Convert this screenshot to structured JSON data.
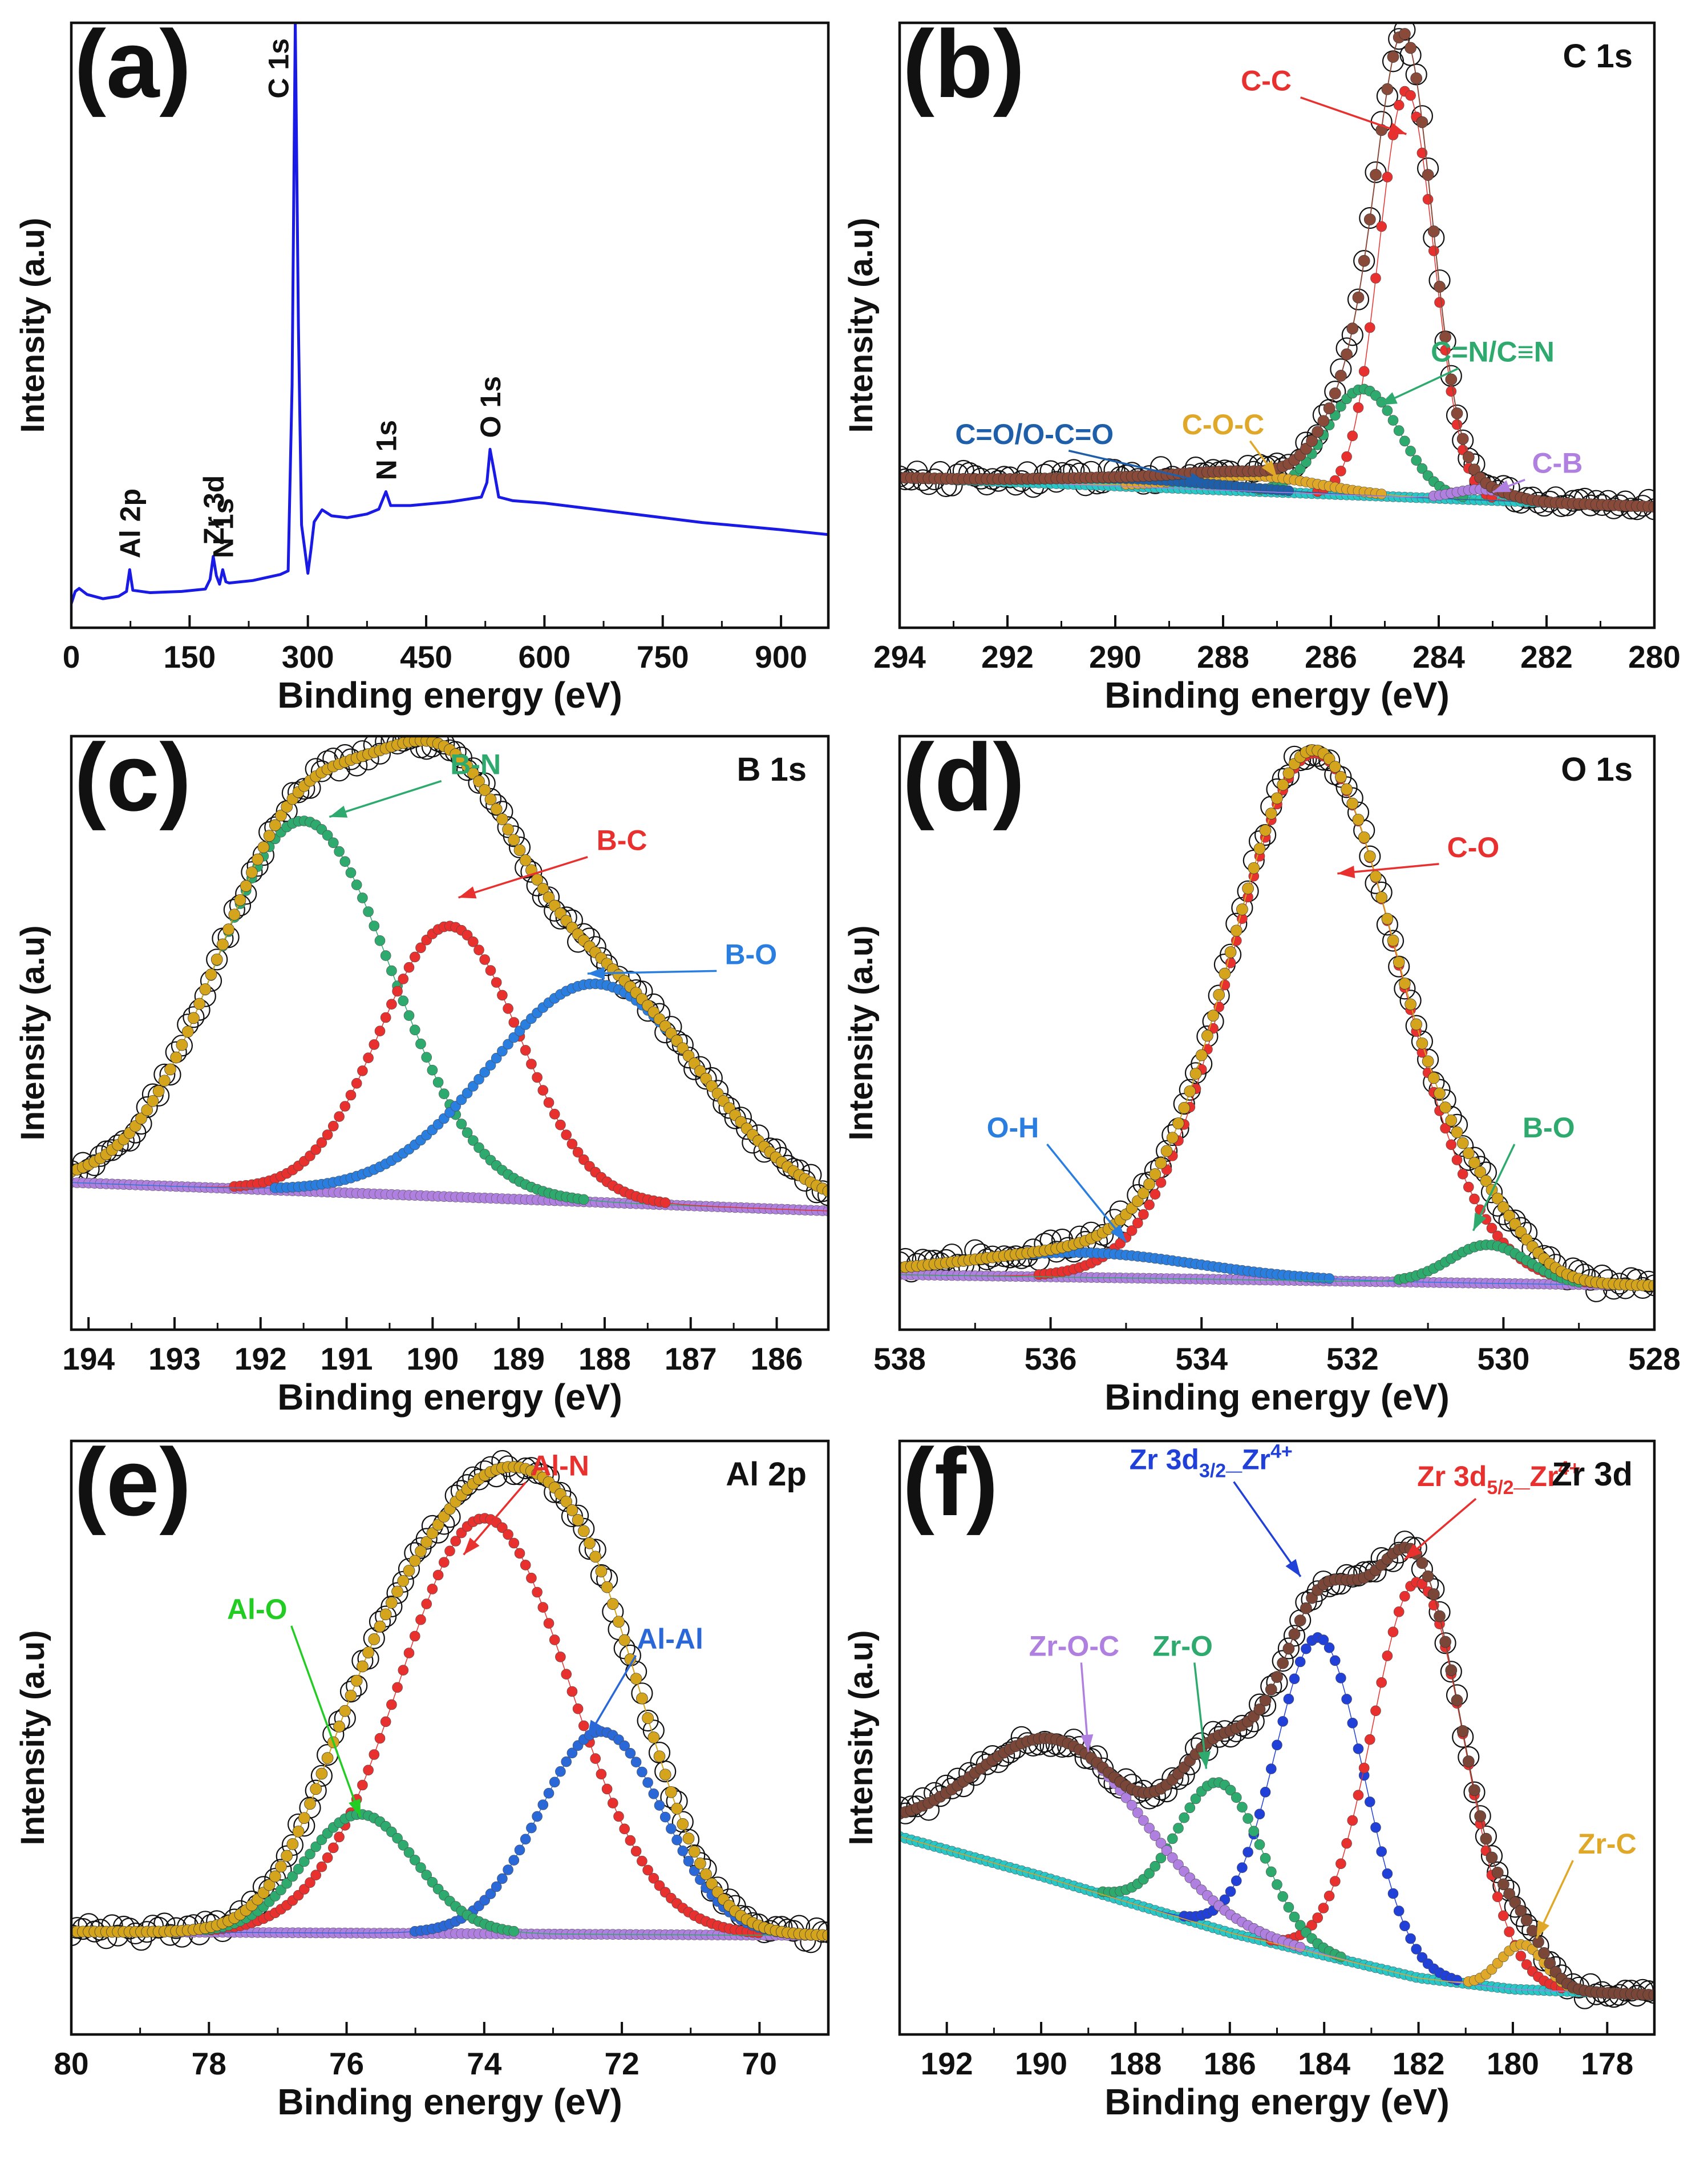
{
  "figure": {
    "panels": [
      {
        "id": "a",
        "letter": "(a)",
        "title": "",
        "kind": "survey",
        "xlabel": "Binding energy (eV)",
        "ylabel": "Intensity (a.u)",
        "xlim": [
          0,
          960
        ],
        "ylim": [
          0,
          100
        ],
        "ticks": [
          0,
          150,
          300,
          450,
          600,
          750,
          900
        ],
        "tick_labels": [
          "0",
          "150",
          "300",
          "450",
          "600",
          "750",
          "900"
        ],
        "series": [
          {
            "name": "Survey spectrum",
            "color": "#1a1ae6"
          }
        ],
        "spectrum": [
          [
            0,
            4
          ],
          [
            5,
            6
          ],
          [
            10,
            6.5
          ],
          [
            20,
            5.5
          ],
          [
            40,
            4.8
          ],
          [
            60,
            5.2
          ],
          [
            70,
            6.0
          ],
          [
            74,
            9.6
          ],
          [
            78,
            6.2
          ],
          [
            100,
            5.8
          ],
          [
            140,
            6.0
          ],
          [
            170,
            6.4
          ],
          [
            176,
            8.0
          ],
          [
            180,
            11.8
          ],
          [
            184,
            8.6
          ],
          [
            188,
            7.2
          ],
          [
            192,
            9.6
          ],
          [
            196,
            7.6
          ],
          [
            200,
            7.4
          ],
          [
            230,
            7.8
          ],
          [
            265,
            8.8
          ],
          [
            275,
            9.4
          ],
          [
            280,
            40
          ],
          [
            284,
            100
          ],
          [
            288,
            50
          ],
          [
            292,
            17
          ],
          [
            296,
            13
          ],
          [
            300,
            9.0
          ],
          [
            304,
            13
          ],
          [
            308,
            17.5
          ],
          [
            318,
            19.5
          ],
          [
            330,
            18.5
          ],
          [
            350,
            18.2
          ],
          [
            375,
            18.8
          ],
          [
            390,
            19.6
          ],
          [
            399,
            22.5
          ],
          [
            405,
            20.2
          ],
          [
            430,
            20.2
          ],
          [
            480,
            20.8
          ],
          [
            520,
            21.6
          ],
          [
            527,
            24
          ],
          [
            531,
            29.5
          ],
          [
            536,
            26
          ],
          [
            542,
            21.6
          ],
          [
            560,
            21.0
          ],
          [
            600,
            20.6
          ],
          [
            650,
            19.8
          ],
          [
            700,
            19.0
          ],
          [
            750,
            18.2
          ],
          [
            800,
            17.4
          ],
          [
            850,
            16.8
          ],
          [
            900,
            16.2
          ],
          [
            960,
            15.4
          ]
        ],
        "annotations": [
          {
            "text": "Al 2p",
            "x": 74,
            "y": 9.6
          },
          {
            "text": "Zr 3d",
            "x": 180,
            "y": 11.8
          },
          {
            "text": "N 1s",
            "x": 192,
            "y": 9.6
          },
          {
            "text": "C 1s",
            "x": 284,
            "y": 100
          },
          {
            "text": "N 1s",
            "x": 399,
            "y": 22.5
          },
          {
            "text": "O 1s",
            "x": 531,
            "y": 29.5
          }
        ]
      },
      {
        "id": "b",
        "letter": "(b)",
        "title": "C 1s",
        "kind": "fit",
        "xlabel": "Binding energy (eV)",
        "ylabel": "Intensity (a.u)",
        "xlim": [
          294,
          280
        ],
        "ylim": [
          -25,
          100
        ],
        "ticks": [
          294,
          292,
          290,
          288,
          286,
          284,
          282,
          280
        ],
        "tick_labels": [
          "294",
          "292",
          "290",
          "288",
          "286",
          "284",
          "282",
          "280"
        ],
        "baseline": {
          "color": "#28c8c8",
          "values": [
            [
              294,
              6
            ],
            [
              280,
              0
            ]
          ]
        },
        "experimental_color": "#111111",
        "envelope": {
          "color": "#8a4a3a"
        },
        "components": [
          {
            "name": "C-C",
            "color": "#e8302e",
            "center": 284.6,
            "height": 84,
            "fwhm": 1.2
          },
          {
            "name": "C=N/C≡N",
            "color": "#2eaa6e",
            "center": 285.4,
            "height": 22,
            "fwhm": 1.6
          },
          {
            "name": "C-O-C",
            "color": "#e0a828",
            "center": 287.4,
            "height": 3.2,
            "fwhm": 2.8
          },
          {
            "name": "C=O/O-C=O",
            "color": "#1f5faa",
            "center": 289.6,
            "height": 1.6,
            "fwhm": 4.0
          },
          {
            "name": "C-B",
            "color": "#b080e0",
            "center": 283.2,
            "height": 2.2,
            "fwhm": 1.2
          }
        ],
        "labels": [
          {
            "text": "C-C",
            "color": "#e8302e",
            "tx": 287.2,
            "ty": 86,
            "ax": 284.6,
            "ay": 77
          },
          {
            "text": "C=N/C≡N",
            "color": "#2eaa6e",
            "tx": 283.0,
            "ty": 30,
            "ax": 285.1,
            "ay": 21
          },
          {
            "text": "C-O-C",
            "color": "#e0a828",
            "tx": 288.0,
            "ty": 15,
            "ax": 287.0,
            "ay": 6
          },
          {
            "text": "C=O/O-C=O",
            "color": "#1f5faa",
            "tx": 291.5,
            "ty": 13,
            "ax": 288.3,
            "ay": 5
          },
          {
            "text": "C-B",
            "color": "#b080e0",
            "tx": 281.8,
            "ty": 7,
            "ax": 283.0,
            "ay": 3
          }
        ]
      },
      {
        "id": "c",
        "letter": "(c)",
        "title": "B 1s",
        "kind": "fit",
        "xlabel": "Binding energy (eV)",
        "ylabel": "Intensity (a.u)",
        "xlim": [
          194.2,
          185.4
        ],
        "ylim": [
          -25,
          100
        ],
        "ticks": [
          194,
          193,
          192,
          191,
          190,
          189,
          188,
          187,
          186
        ],
        "tick_labels": [
          "194",
          "193",
          "192",
          "191",
          "190",
          "189",
          "188",
          "187",
          "186"
        ],
        "baseline": {
          "color": "#b080e0",
          "values": [
            [
              194.2,
              6
            ],
            [
              185.4,
              0
            ]
          ]
        },
        "experimental_color": "#111111",
        "envelope": {
          "color": "#d4a41c"
        },
        "components": [
          {
            "name": "B-N",
            "color": "#2eaa6e",
            "center": 191.5,
            "height": 78,
            "fwhm": 2.4
          },
          {
            "name": "B-C",
            "color": "#e8302e",
            "center": 189.8,
            "height": 57,
            "fwhm": 1.9
          },
          {
            "name": "B-O",
            "color": "#2a7ee0",
            "center": 188.1,
            "height": 46,
            "fwhm": 2.9
          }
        ],
        "labels": [
          {
            "text": "B-N",
            "color": "#2eaa6e",
            "tx": 189.5,
            "ty": 92,
            "ax": 191.2,
            "ay": 83
          },
          {
            "text": "B-C",
            "color": "#e8302e",
            "tx": 187.8,
            "ty": 76,
            "ax": 189.7,
            "ay": 66
          },
          {
            "text": "B-O",
            "color": "#2a7ee0",
            "tx": 186.3,
            "ty": 52,
            "ax": 188.2,
            "ay": 50
          }
        ]
      },
      {
        "id": "d",
        "letter": "(d)",
        "title": "O 1s",
        "kind": "fit",
        "xlabel": "Binding energy (eV)",
        "ylabel": "Intensity (a.u)",
        "xlim": [
          538,
          528
        ],
        "ylim": [
          -8,
          100
        ],
        "ticks": [
          538,
          536,
          534,
          532,
          530,
          528
        ],
        "tick_labels": [
          "538",
          "536",
          "534",
          "532",
          "530",
          "528"
        ],
        "baseline": {
          "color": "#b080e0",
          "values": [
            [
              538,
              2
            ],
            [
              528,
              0
            ]
          ]
        },
        "experimental_color": "#111111",
        "envelope": {
          "color": "#d4a41c"
        },
        "components": [
          {
            "name": "C-O",
            "color": "#e8302e",
            "center": 532.5,
            "height": 96,
            "fwhm": 2.6
          },
          {
            "name": "O-H",
            "color": "#2a7ee0",
            "center": 535.6,
            "height": 4.5,
            "fwhm": 3.6
          },
          {
            "name": "B-O",
            "color": "#2eaa6e",
            "center": 530.2,
            "height": 7,
            "fwhm": 1.2
          }
        ],
        "labels": [
          {
            "text": "C-O",
            "color": "#e8302e",
            "tx": 530.4,
            "ty": 78,
            "ax": 532.2,
            "ay": 75
          },
          {
            "text": "O-H",
            "color": "#2a7ee0",
            "tx": 536.5,
            "ty": 27,
            "ax": 535.0,
            "ay": 8
          },
          {
            "text": "B-O",
            "color": "#2eaa6e",
            "tx": 529.4,
            "ty": 27,
            "ax": 530.4,
            "ay": 10
          }
        ]
      },
      {
        "id": "e",
        "letter": "(e)",
        "title": "Al 2p",
        "kind": "fit",
        "xlabel": "Binding energy (eV)",
        "ylabel": "Intensity (a.u)",
        "xlim": [
          80,
          69
        ],
        "ylim": [
          -20,
          100
        ],
        "ticks": [
          80,
          78,
          76,
          74,
          72,
          70
        ],
        "tick_labels": [
          "80",
          "78",
          "76",
          "74",
          "72",
          "70"
        ],
        "baseline": {
          "color": "#b080e0",
          "values": [
            [
              80,
              0.8
            ],
            [
              69,
              0
            ]
          ]
        },
        "experimental_color": "#111111",
        "envelope": {
          "color": "#d4a41c"
        },
        "components": [
          {
            "name": "Al-N",
            "color": "#e8302e",
            "center": 74.0,
            "height": 84,
            "fwhm": 2.9
          },
          {
            "name": "Al-Al",
            "color": "#2a68d8",
            "center": 72.3,
            "height": 41,
            "fwhm": 2.1
          },
          {
            "name": "Al-O",
            "color": "#2eaa6e",
            "center": 75.8,
            "height": 24,
            "fwhm": 1.9
          }
        ],
        "labels": [
          {
            "text": "Al-N",
            "color": "#e8302e",
            "tx": 72.9,
            "ty": 93,
            "ax": 74.3,
            "ay": 77
          },
          {
            "text": "Al-Al",
            "color": "#2a68d8",
            "tx": 71.3,
            "ty": 58,
            "ax": 72.5,
            "ay": 40
          },
          {
            "text": "Al-O",
            "color": "#22cc22",
            "tx": 77.3,
            "ty": 64,
            "ax": 75.8,
            "ay": 24
          }
        ]
      },
      {
        "id": "f",
        "letter": "(f)",
        "title": "Zr 3d",
        "kind": "fit",
        "xlabel": "Binding energy (eV)",
        "ylabel": "Intensity (a.u)",
        "xlim": [
          193,
          177
        ],
        "ylim": [
          -5,
          100
        ],
        "ticks": [
          192,
          190,
          188,
          186,
          184,
          182,
          180,
          178
        ],
        "tick_labels": [
          "192",
          "190",
          "188",
          "186",
          "184",
          "182",
          "180",
          "178"
        ],
        "baseline": {
          "color": "#28c8c8",
          "values": [
            [
              193,
              30
            ],
            [
              190,
              23
            ],
            [
              186,
              13
            ],
            [
              182,
              5
            ],
            [
              180,
              3
            ],
            [
              177,
              2
            ]
          ]
        },
        "experimental_color": "#111111",
        "envelope": {
          "color": "#7a4638"
        },
        "components": [
          {
            "name": "Zr 3d3/2_Zr4+",
            "color": "#2040d8",
            "center": 184.1,
            "height": 56,
            "fwhm": 2.2
          },
          {
            "name": "Zr 3d5/2_Zr4+",
            "color": "#e8302e",
            "center": 182.0,
            "height": 70,
            "fwhm": 2.3
          },
          {
            "name": "Zr-O",
            "color": "#2eaa6e",
            "center": 186.2,
            "height": 26,
            "fwhm": 2.1
          },
          {
            "name": "Zr-O-C",
            "color": "#b080e0",
            "center": 189.6,
            "height": 25,
            "fwhm": 4.2
          },
          {
            "name": "Zr-C",
            "color": "#e0a828",
            "center": 179.8,
            "height": 8,
            "fwhm": 1.1
          }
        ],
        "labels": [
          {
            "text": "Zr-O-C",
            "color": "#b080e0",
            "tx": 189.3,
            "ty": 62,
            "ax": 189.0,
            "ay": 45
          },
          {
            "text": "Zr-O",
            "color": "#2eaa6e",
            "tx": 187.0,
            "ty": 62,
            "ax": 186.5,
            "ay": 42
          },
          {
            "text": "Zr-C",
            "color": "#e0a828",
            "tx": 178.0,
            "ty": 27,
            "ax": 179.5,
            "ay": 12
          }
        ],
        "zr_labels": [
          {
            "main": "Zr 3d",
            "sub": "3/2",
            "mid": "_Zr",
            "sup": "4+",
            "color": "#2040d8",
            "tx": 186.4,
            "ty": 95,
            "ax": 184.5,
            "ay": 76
          },
          {
            "main": "Zr 3d",
            "sub": "5/2",
            "mid": "_Zr",
            "sup": "4+",
            "color": "#e8302e",
            "tx": 180.3,
            "ty": 92,
            "ax": 182.3,
            "ay": 79
          }
        ]
      }
    ]
  },
  "chart_data": [
    {
      "type": "line",
      "panel": "a",
      "title": "",
      "xlabel": "Binding energy (eV)",
      "ylabel": "Intensity (a.u)",
      "xlim": [
        0,
        960
      ],
      "series": [
        {
          "name": "Survey spectrum",
          "peaks": {
            "Al 2p": 74,
            "Zr 3d": 180,
            "N 1s (low)": 192,
            "C 1s": 284,
            "N 1s": 399,
            "O 1s": 531
          }
        }
      ]
    },
    {
      "type": "line",
      "panel": "b",
      "title": "C 1s",
      "xlabel": "Binding energy (eV)",
      "ylabel": "Intensity (a.u)",
      "xlim": [
        294,
        280
      ],
      "series": [
        {
          "name": "C-C",
          "center": 284.6
        },
        {
          "name": "C=N/C≡N",
          "center": 285.4
        },
        {
          "name": "C-O-C",
          "center": 287.4
        },
        {
          "name": "C=O/O-C=O",
          "center": 289.6
        },
        {
          "name": "C-B",
          "center": 283.2
        }
      ]
    },
    {
      "type": "line",
      "panel": "c",
      "title": "B 1s",
      "xlabel": "Binding energy (eV)",
      "ylabel": "Intensity (a.u)",
      "xlim": [
        194.2,
        185.4
      ],
      "series": [
        {
          "name": "B-N",
          "center": 191.5
        },
        {
          "name": "B-C",
          "center": 189.8
        },
        {
          "name": "B-O",
          "center": 188.1
        }
      ]
    },
    {
      "type": "line",
      "panel": "d",
      "title": "O 1s",
      "xlabel": "Binding energy (eV)",
      "ylabel": "Intensity (a.u)",
      "xlim": [
        538,
        528
      ],
      "series": [
        {
          "name": "C-O",
          "center": 532.5
        },
        {
          "name": "O-H",
          "center": 535.6
        },
        {
          "name": "B-O",
          "center": 530.2
        }
      ]
    },
    {
      "type": "line",
      "panel": "e",
      "title": "Al 2p",
      "xlabel": "Binding energy (eV)",
      "ylabel": "Intensity (a.u)",
      "xlim": [
        80,
        69
      ],
      "series": [
        {
          "name": "Al-N",
          "center": 74.0
        },
        {
          "name": "Al-Al",
          "center": 72.3
        },
        {
          "name": "Al-O",
          "center": 75.8
        }
      ]
    },
    {
      "type": "line",
      "panel": "f",
      "title": "Zr 3d",
      "xlabel": "Binding energy (eV)",
      "ylabel": "Intensity (a.u)",
      "xlim": [
        193,
        177
      ],
      "series": [
        {
          "name": "Zr 3d3/2_Zr4+",
          "center": 184.1
        },
        {
          "name": "Zr 3d5/2_Zr4+",
          "center": 182.0
        },
        {
          "name": "Zr-O",
          "center": 186.2
        },
        {
          "name": "Zr-O-C",
          "center": 189.6
        },
        {
          "name": "Zr-C",
          "center": 179.8
        }
      ]
    }
  ]
}
